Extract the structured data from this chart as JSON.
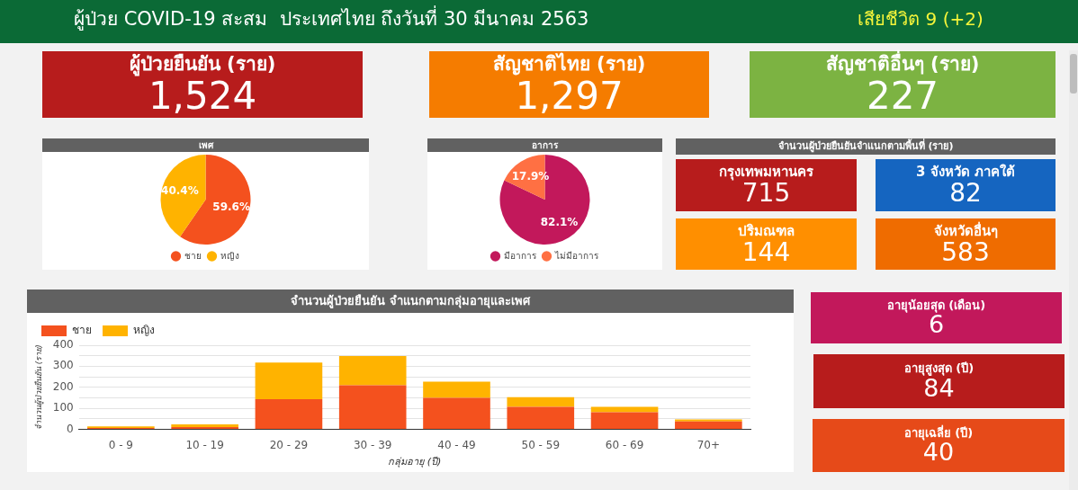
{
  "chart_data": [
    {
      "type": "other",
      "title": "ผู้ป่วย COVID-19 สะสม  ประเทศไทย ถึงวันที่ 30 มีนาคม 2563",
      "annotations": [
        "เสียชีวิต 9 (+2)"
      ],
      "color": "#0b6a36"
    },
    {
      "type": "other",
      "categories": [
        "ผู้ป่วยยืนยัน (ราย)",
        "สัญชาติไทย (ราย)",
        "สัญชาติอื่นๆ (ราย)"
      ],
      "value_labels": [
        "1,524",
        "1,297",
        "227"
      ],
      "colors": [
        "#b71c1c",
        "#f57c00",
        "#7cb342"
      ]
    },
    {
      "type": "pie",
      "title": "เพศ",
      "categories": [
        "ชาย",
        "หญิง"
      ],
      "values": [
        59.6,
        40.4
      ],
      "colors": [
        "#f4511e",
        "#ffb300"
      ],
      "value_labels": [
        "59.6%",
        "40.4%"
      ],
      "legend": "bottom"
    },
    {
      "type": "pie",
      "title": "อาการ",
      "categories": [
        "มีอาการ",
        "ไม่มีอาการ"
      ],
      "values": [
        82.1,
        17.9
      ],
      "colors": [
        "#c2185b",
        "#ff7043"
      ],
      "value_labels": [
        "82.1%",
        "17.9%"
      ],
      "legend": "bottom"
    },
    {
      "type": "other",
      "title": "จำนวนผู้ป่วยยืนยันจำแนกตามพื้นที่ (ราย)",
      "categories": [
        "กรุงเทพมหานคร",
        "3 จังหวัด ภาคใต้",
        "ปริมณฑล",
        "จังหวัดอื่นๆ"
      ],
      "values": [
        715,
        82,
        144,
        583
      ],
      "colors": [
        "#b71c1c",
        "#1565c0",
        "#ff8f00",
        "#ef6c00"
      ],
      "data_labels": true
    },
    {
      "type": "bar",
      "title": "จำนวนผู้ป่วยยืนยัน จำแนกตามกลุ่มอายุและเพศ",
      "xlabel": "กลุ่มอายุ (ปี)",
      "ylabel": "จำนวนผู้ป่วยยืนยัน (ราย)",
      "categories": [
        "0 - 9",
        "10 - 19",
        "20 - 29",
        "30 - 39",
        "40 - 49",
        "50 - 59",
        "60 - 69",
        "70+"
      ],
      "series": [
        {
          "name": "ชาย",
          "color": "#f4511e",
          "values": [
            6,
            10,
            143,
            209,
            150,
            107,
            81,
            37
          ]
        },
        {
          "name": "หญิง",
          "color": "#ffb300",
          "values": [
            8,
            13,
            175,
            140,
            77,
            46,
            26,
            10
          ]
        }
      ],
      "stacked": true,
      "ylim": [
        0,
        400
      ],
      "yticks": [
        0,
        {
          "value": 50,
          "label": null
        },
        100,
        {
          "value": 150,
          "label": null
        },
        200,
        {
          "value": 250,
          "label": null
        },
        300,
        {
          "value": 350,
          "label": null
        },
        400
      ],
      "grid": "y",
      "legend": "top left"
    },
    {
      "type": "other",
      "categories": [
        "อายุน้อยสุด (เดือน)",
        "อายุสูงสุด (ปี)",
        "อายุเฉลี่ย (ปี)"
      ],
      "values": [
        6,
        84,
        40
      ],
      "colors": [
        "#c2185b",
        "#b71c1c",
        "#e64a19"
      ],
      "data_labels": true
    }
  ]
}
